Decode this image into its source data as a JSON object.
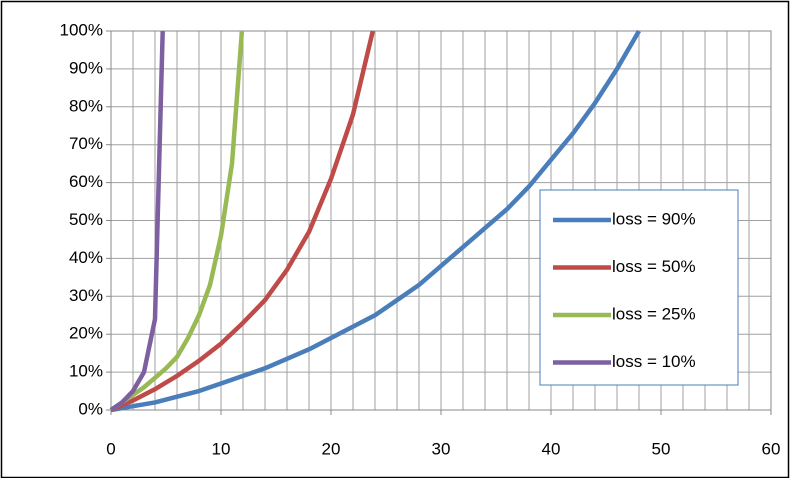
{
  "chart_data": {
    "type": "line",
    "xlim": [
      0,
      60
    ],
    "xticks": [
      0,
      10,
      20,
      30,
      40,
      50,
      60
    ],
    "x_minor_step": 2,
    "ylim": [
      0,
      100
    ],
    "yticks": [
      {
        "value": 0,
        "label": "0%"
      },
      {
        "value": 10,
        "label": "10%"
      },
      {
        "value": 20,
        "label": "20%"
      },
      {
        "value": 30,
        "label": "30%"
      },
      {
        "value": 40,
        "label": "40%"
      },
      {
        "value": 50,
        "label": "50%"
      },
      {
        "value": 60,
        "label": "60%"
      },
      {
        "value": 70,
        "label": "70%"
      },
      {
        "value": 80,
        "label": "80%"
      },
      {
        "value": 90,
        "label": "90%"
      },
      {
        "value": 100,
        "label": "100%"
      }
    ],
    "grid": true,
    "legend": "right",
    "series": [
      {
        "name": "loss = 90%",
        "color": "#4a7ebb",
        "x": [
          0,
          2,
          4,
          6,
          8,
          10,
          12,
          14,
          16,
          18,
          20,
          22,
          24,
          26,
          28,
          30,
          32,
          34,
          36,
          38,
          40,
          42,
          44,
          46,
          48
        ],
        "values": [
          0,
          1,
          2,
          3.5,
          5,
          7,
          9,
          11,
          13.5,
          16,
          19,
          22,
          25,
          29,
          33,
          38,
          43,
          48,
          53,
          59,
          66,
          73,
          81,
          90,
          100
        ]
      },
      {
        "name": "loss = 50%",
        "color": "#be4b48",
        "x": [
          0,
          2,
          4,
          6,
          8,
          10,
          12,
          14,
          16,
          18,
          20,
          22,
          23.8
        ],
        "values": [
          0,
          2.5,
          5.5,
          9,
          13,
          17.5,
          23,
          29,
          37,
          47,
          61,
          78,
          100
        ]
      },
      {
        "name": "loss = 25%",
        "color": "#98b954",
        "x": [
          0,
          1,
          2,
          3,
          4,
          5,
          6,
          7,
          8,
          9,
          10,
          11,
          11.9
        ],
        "values": [
          0,
          2,
          4,
          6,
          8.5,
          11,
          14,
          19,
          25,
          33,
          46,
          65,
          100
        ]
      },
      {
        "name": "loss = 10%",
        "color": "#7d60a0",
        "x": [
          0,
          1,
          2,
          3,
          4,
          4.7
        ],
        "values": [
          0,
          2,
          5,
          10,
          24,
          100
        ]
      }
    ]
  }
}
